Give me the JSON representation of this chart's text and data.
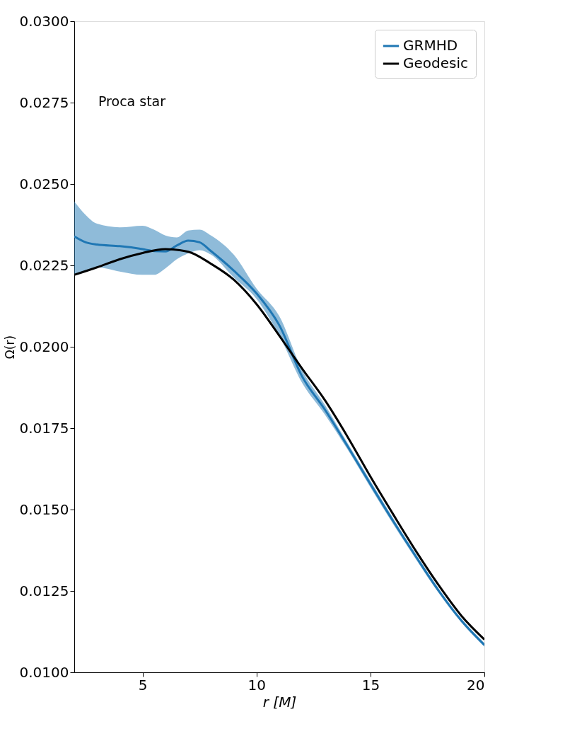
{
  "chart_data": {
    "type": "line",
    "xlabel": "r [M]",
    "ylabel": "Ω(r)",
    "annotations": [
      "Proca star"
    ],
    "xlim": [
      2,
      20
    ],
    "xticks": [
      5,
      10,
      15,
      20
    ],
    "ylim": [
      0.01,
      0.03
    ],
    "yticks": [
      {
        "value": 0.01,
        "label": "0.0100"
      },
      {
        "value": 0.0125,
        "label": "0.0125"
      },
      {
        "value": 0.015,
        "label": "0.0150"
      },
      {
        "value": 0.0175,
        "label": "0.0175"
      },
      {
        "value": 0.02,
        "label": "0.0200"
      },
      {
        "value": 0.0225,
        "label": "0.0225"
      },
      {
        "value": 0.025,
        "label": "0.0250"
      },
      {
        "value": 0.0275,
        "label": "0.0275"
      },
      {
        "value": 0.03,
        "label": "0.0300"
      }
    ],
    "grid": false,
    "legend": "top right",
    "line_style": "solid",
    "marker": "none",
    "series": [
      {
        "name": "GRMHD",
        "color": "#1f77b4",
        "x": [
          2,
          2.5,
          3,
          4,
          5,
          5.5,
          6,
          6.5,
          7,
          7.5,
          8,
          9,
          10,
          11,
          12,
          13,
          14,
          15,
          16,
          17,
          18,
          19,
          20
        ],
        "values": [
          0.02339,
          0.02321,
          0.02314,
          0.02309,
          0.023,
          0.02294,
          0.02293,
          0.02311,
          0.02326,
          0.02321,
          0.02294,
          0.02234,
          0.02164,
          0.02066,
          0.01909,
          0.01807,
          0.01694,
          0.01578,
          0.01464,
          0.01355,
          0.0125,
          0.01158,
          0.01084
        ],
        "lower": [
          0.0222,
          0.0223,
          0.02244,
          0.02231,
          0.02221,
          0.02221,
          0.02241,
          0.02269,
          0.02287,
          0.02297,
          0.02283,
          0.02213,
          0.02147,
          0.02034,
          0.01889,
          0.01792,
          0.01684,
          0.01568,
          0.01455,
          0.01347,
          0.01243,
          0.01152,
          0.01079
        ],
        "upper": [
          0.02447,
          0.02405,
          0.02378,
          0.02367,
          0.02372,
          0.0236,
          0.02342,
          0.02336,
          0.02357,
          0.0236,
          0.02342,
          0.02283,
          0.02179,
          0.02094,
          0.01929,
          0.01822,
          0.01704,
          0.01588,
          0.01473,
          0.01363,
          0.01257,
          0.01164,
          0.0109
        ]
      },
      {
        "name": "Geodesic",
        "color": "#000000",
        "x": [
          2,
          3,
          4,
          5,
          6,
          7,
          8,
          9,
          10,
          11,
          12,
          13,
          14,
          15,
          16,
          17,
          18,
          19,
          20
        ],
        "values": [
          0.02221,
          0.02244,
          0.02269,
          0.02288,
          0.023,
          0.02292,
          0.02255,
          0.02206,
          0.02131,
          0.02034,
          0.01933,
          0.01836,
          0.01723,
          0.01601,
          0.01485,
          0.01372,
          0.01267,
          0.01173,
          0.01101
        ]
      }
    ]
  }
}
